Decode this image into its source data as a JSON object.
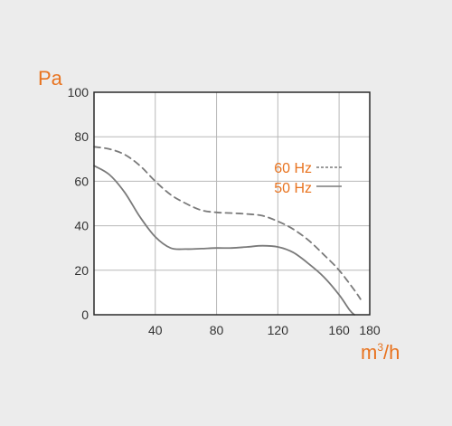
{
  "chart_data": {
    "type": "line",
    "title": "",
    "ylabel": "Pa",
    "xlabel_base": "m",
    "xlabel_sup": "3",
    "xlabel_tail": "/h",
    "xlim": [
      0,
      180
    ],
    "ylim": [
      0,
      100
    ],
    "grid": true,
    "legend_position": "top-right",
    "x_ticks": [
      {
        "value": 40,
        "label": "40"
      },
      {
        "value": 80,
        "label": "80"
      },
      {
        "value": 120,
        "label": "120"
      },
      {
        "value": 160,
        "label": "160"
      },
      {
        "value": 180,
        "label": "180"
      }
    ],
    "y_ticks": [
      {
        "value": 0,
        "label": "0"
      },
      {
        "value": 20,
        "label": "20"
      },
      {
        "value": 40,
        "label": "40"
      },
      {
        "value": 60,
        "label": "60"
      },
      {
        "value": 80,
        "label": "80"
      },
      {
        "value": 100,
        "label": "100"
      }
    ],
    "series": [
      {
        "name": "60 Hz",
        "style": "dashed",
        "color": "#7a7a7a",
        "points": [
          [
            0,
            75.5
          ],
          [
            10,
            74.5
          ],
          [
            20,
            72
          ],
          [
            30,
            67
          ],
          [
            40,
            60
          ],
          [
            50,
            54
          ],
          [
            60,
            50
          ],
          [
            70,
            47
          ],
          [
            80,
            46
          ],
          [
            90,
            45.7
          ],
          [
            100,
            45.3
          ],
          [
            110,
            44.5
          ],
          [
            120,
            42
          ],
          [
            130,
            38.5
          ],
          [
            140,
            33.5
          ],
          [
            150,
            27
          ],
          [
            160,
            20
          ],
          [
            170,
            11
          ],
          [
            174,
            7
          ]
        ]
      },
      {
        "name": "50 Hz",
        "style": "solid",
        "color": "#7a7a7a",
        "points": [
          [
            0,
            67
          ],
          [
            10,
            63
          ],
          [
            20,
            55
          ],
          [
            30,
            44
          ],
          [
            40,
            35
          ],
          [
            50,
            30
          ],
          [
            60,
            29.5
          ],
          [
            70,
            29.7
          ],
          [
            80,
            30
          ],
          [
            90,
            30
          ],
          [
            100,
            30.5
          ],
          [
            110,
            31
          ],
          [
            120,
            30.5
          ],
          [
            130,
            28
          ],
          [
            140,
            23
          ],
          [
            150,
            17
          ],
          [
            160,
            9
          ],
          [
            167,
            2
          ],
          [
            170,
            0
          ]
        ]
      }
    ],
    "grid_x_values": [
      0,
      40,
      80,
      120,
      160,
      180
    ],
    "colors": {
      "axis_label": "#e8731f",
      "legend_text": "#e8731f",
      "tick_label": "#333333",
      "grid": "#b8b8b8",
      "plot_bg": "#ffffff",
      "page_bg": "#ececec"
    }
  }
}
